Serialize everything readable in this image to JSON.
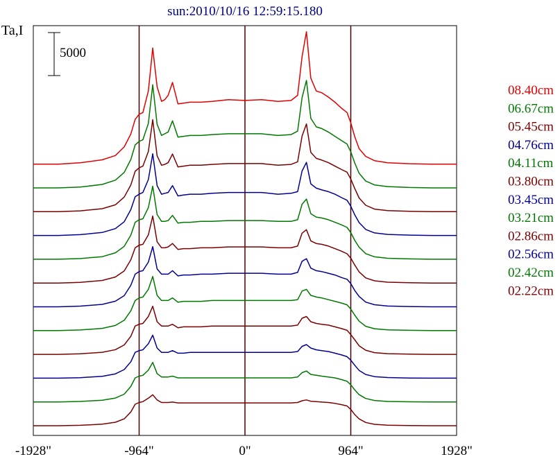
{
  "chart_data": {
    "type": "line",
    "title": "sun:2010/10/16 12:59:15.180",
    "ylabel": "Ta,I",
    "scale_bar_label": "5000",
    "scale_bar_value": 5000,
    "x_ticks": [
      -1928,
      -964,
      0,
      964,
      1928
    ],
    "x_tick_labels": [
      "-1928\"",
      "-964\"",
      "0\"",
      "964\"",
      "1928\""
    ],
    "xlim": [
      -1928,
      1928
    ],
    "vertical_lines_at": [
      -964,
      0,
      964
    ],
    "colors": {
      "red": "#e00000",
      "green": "#007800",
      "maroon": "#7a0000",
      "navy": "#000090",
      "axis": "#000000",
      "vline": "#4a0000"
    },
    "x": [
      -1928,
      -1700,
      -1500,
      -1300,
      -1180,
      -1100,
      -1040,
      -1000,
      -964,
      -930,
      -880,
      -840,
      -800,
      -760,
      -730,
      -700,
      -660,
      -610,
      -560,
      -500,
      -400,
      -300,
      -150,
      0,
      150,
      300,
      420,
      480,
      520,
      560,
      600,
      650,
      700,
      760,
      820,
      880,
      930,
      964,
      1000,
      1040,
      1100,
      1180,
      1300,
      1500,
      1700,
      1928
    ],
    "series": [
      {
        "name": "08.40cm",
        "color": "#e00000",
        "values": [
          0,
          0,
          150,
          500,
          1000,
          2000,
          3500,
          5200,
          5800,
          6000,
          8500,
          13500,
          9000,
          7300,
          7500,
          8000,
          9500,
          7000,
          7100,
          7200,
          7200,
          7300,
          7500,
          7400,
          7500,
          7300,
          7400,
          8000,
          12500,
          15400,
          10000,
          8500,
          8300,
          7800,
          7200,
          6500,
          6000,
          4800,
          3200,
          1800,
          900,
          400,
          150,
          50,
          0,
          0
        ]
      },
      {
        "name": "06.67cm",
        "color": "#007800",
        "values": [
          0,
          0,
          100,
          400,
          900,
          1800,
          3300,
          5000,
          5400,
          5600,
          7500,
          12000,
          7400,
          6100,
          6300,
          6500,
          7800,
          5900,
          6000,
          6100,
          6100,
          6200,
          6300,
          6300,
          6300,
          6100,
          6200,
          6600,
          10500,
          12500,
          8100,
          7100,
          6900,
          6500,
          6000,
          5500,
          5100,
          4200,
          2900,
          1700,
          800,
          350,
          150,
          50,
          0,
          0
        ]
      },
      {
        "name": "05.45cm",
        "color": "#7a0000",
        "values": [
          0,
          0,
          100,
          350,
          800,
          1700,
          3100,
          4700,
          5100,
          5300,
          7000,
          10700,
          6500,
          5400,
          5500,
          5700,
          6700,
          5200,
          5300,
          5400,
          5400,
          5500,
          5600,
          5600,
          5600,
          5400,
          5500,
          5800,
          8800,
          10200,
          6900,
          6200,
          6000,
          5700,
          5300,
          4900,
          4600,
          3800,
          2700,
          1600,
          750,
          300,
          120,
          40,
          0,
          0
        ]
      },
      {
        "name": "04.76cm",
        "color": "#000090",
        "values": [
          0,
          0,
          100,
          350,
          800,
          1600,
          3000,
          4500,
          4800,
          5000,
          6500,
          9500,
          5800,
          4800,
          4900,
          5000,
          5800,
          4600,
          4700,
          4800,
          4800,
          4900,
          5000,
          5000,
          5000,
          4800,
          4900,
          5100,
          7500,
          8500,
          6000,
          5500,
          5300,
          5100,
          4800,
          4400,
          4100,
          3400,
          2400,
          1500,
          700,
          300,
          120,
          40,
          0,
          0
        ]
      },
      {
        "name": "04.11cm",
        "color": "#007800",
        "values": [
          0,
          0,
          80,
          300,
          750,
          1500,
          2800,
          4300,
          4600,
          4700,
          6000,
          8500,
          5200,
          4400,
          4400,
          4500,
          5100,
          4200,
          4300,
          4300,
          4400,
          4400,
          4500,
          4500,
          4500,
          4400,
          4400,
          4600,
          6400,
          7000,
          5300,
          4900,
          4800,
          4600,
          4300,
          4000,
          3700,
          3100,
          2200,
          1400,
          650,
          280,
          110,
          40,
          0,
          0
        ]
      },
      {
        "name": "03.80cm",
        "color": "#7a0000",
        "values": [
          0,
          0,
          80,
          300,
          700,
          1400,
          2700,
          4100,
          4400,
          4500,
          5600,
          7800,
          4800,
          4100,
          4100,
          4200,
          4600,
          3900,
          4000,
          4000,
          4100,
          4100,
          4200,
          4200,
          4200,
          4100,
          4100,
          4300,
          5800,
          6200,
          4900,
          4600,
          4500,
          4300,
          4000,
          3700,
          3400,
          2900,
          2100,
          1300,
          600,
          260,
          100,
          30,
          0,
          0
        ]
      },
      {
        "name": "03.45cm",
        "color": "#000090",
        "values": [
          0,
          0,
          80,
          280,
          650,
          1300,
          2500,
          3800,
          4100,
          4200,
          5200,
          7000,
          4400,
          3800,
          3800,
          3800,
          4200,
          3600,
          3700,
          3700,
          3800,
          3800,
          3900,
          3900,
          3900,
          3800,
          3800,
          4000,
          5300,
          5600,
          4500,
          4200,
          4100,
          3900,
          3700,
          3400,
          3200,
          2700,
          1900,
          1200,
          550,
          240,
          90,
          30,
          0,
          0
        ]
      },
      {
        "name": "03.21cm",
        "color": "#007800",
        "values": [
          0,
          0,
          70,
          260,
          600,
          1200,
          2300,
          3500,
          3800,
          3900,
          4800,
          6300,
          4100,
          3500,
          3500,
          3500,
          3800,
          3300,
          3400,
          3400,
          3400,
          3500,
          3500,
          3500,
          3500,
          3500,
          3500,
          3600,
          4600,
          4800,
          4100,
          3900,
          3800,
          3600,
          3400,
          3200,
          3000,
          2500,
          1800,
          1100,
          500,
          220,
          80,
          30,
          0,
          0
        ]
      },
      {
        "name": "02.86cm",
        "color": "#7a0000",
        "values": [
          0,
          0,
          70,
          240,
          550,
          1100,
          2100,
          3300,
          3500,
          3600,
          4400,
          5600,
          3800,
          3300,
          3300,
          3300,
          3500,
          3100,
          3200,
          3200,
          3200,
          3300,
          3300,
          3300,
          3300,
          3300,
          3300,
          3400,
          4200,
          4400,
          3800,
          3600,
          3500,
          3400,
          3200,
          3000,
          2800,
          2300,
          1700,
          1000,
          480,
          200,
          80,
          30,
          0,
          0
        ]
      },
      {
        "name": "02.56cm",
        "color": "#000090",
        "values": [
          0,
          0,
          60,
          220,
          500,
          1000,
          1900,
          3000,
          3200,
          3300,
          4000,
          5000,
          3500,
          3000,
          3000,
          3000,
          3200,
          2900,
          2900,
          3000,
          3000,
          3000,
          3000,
          3000,
          3000,
          3000,
          3000,
          3100,
          3700,
          3900,
          3500,
          3300,
          3200,
          3100,
          2900,
          2700,
          2500,
          2100,
          1500,
          900,
          430,
          180,
          70,
          20,
          0,
          0
        ]
      },
      {
        "name": "02.42cm",
        "color": "#007800",
        "values": [
          0,
          0,
          60,
          200,
          450,
          900,
          1800,
          2800,
          3000,
          3100,
          3700,
          4600,
          3300,
          2900,
          2900,
          2900,
          3000,
          2800,
          2800,
          2800,
          2800,
          2800,
          2800,
          2800,
          2800,
          2800,
          2800,
          2900,
          3400,
          3600,
          3200,
          3100,
          3000,
          2900,
          2800,
          2600,
          2400,
          2000,
          1400,
          850,
          400,
          170,
          60,
          20,
          0,
          0
        ]
      },
      {
        "name": "02.22cm",
        "color": "#7a0000",
        "values": [
          0,
          0,
          50,
          180,
          400,
          800,
          1600,
          2500,
          2700,
          2800,
          3200,
          3600,
          3000,
          2700,
          2700,
          2700,
          2750,
          2650,
          2650,
          2650,
          2650,
          2650,
          2650,
          2650,
          2650,
          2650,
          2650,
          2700,
          2900,
          3000,
          2850,
          2800,
          2750,
          2700,
          2600,
          2450,
          2300,
          1900,
          1300,
          800,
          380,
          160,
          60,
          20,
          0,
          0
        ]
      }
    ]
  }
}
